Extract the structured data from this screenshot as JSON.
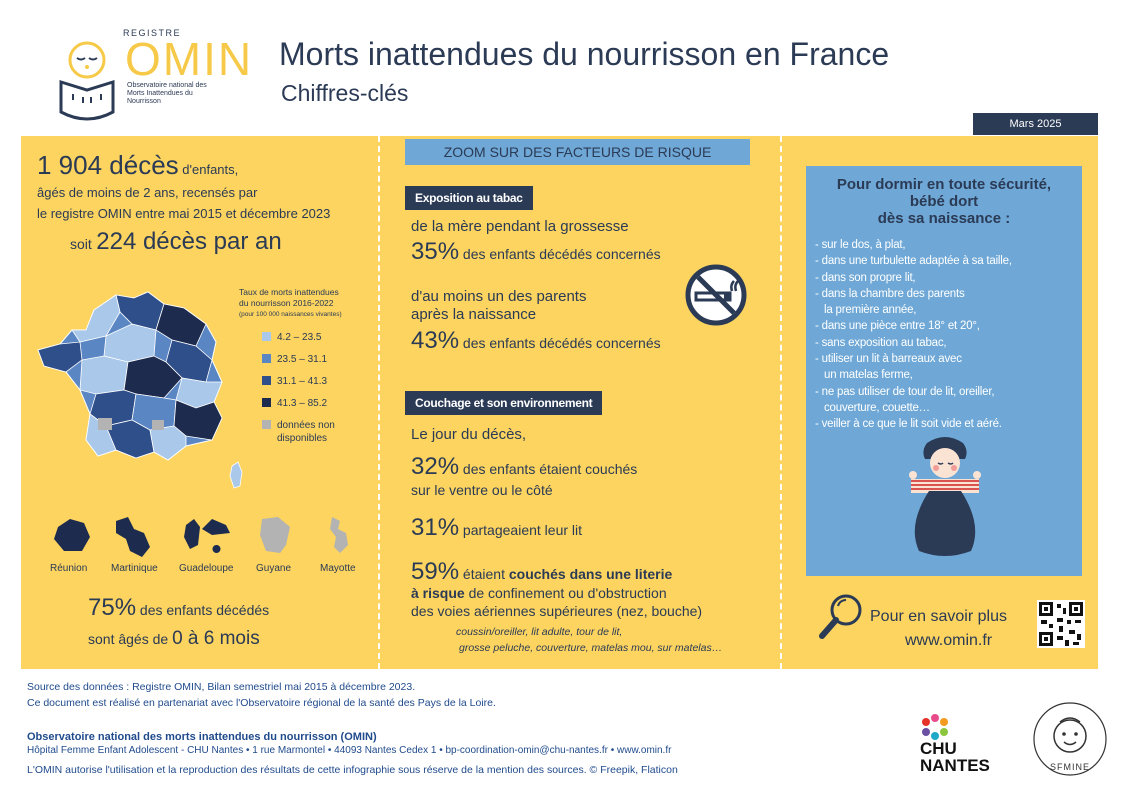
{
  "header": {
    "logo": {
      "registre": "REGISTRE",
      "omin": "OMIN",
      "subtitle": "Observatoire national des Morts Inattendues du Nourrisson"
    },
    "title": "Morts inattendues du nourrisson en France",
    "subtitle": "Chiffres-clés",
    "date": "Mars 2025"
  },
  "left": {
    "deaths_number": "1 904 décès",
    "deaths_suffix": " d'enfants,",
    "line2": "âgés de moins de 2 ans, recensés par",
    "line3": "le registre OMIN entre mai 2015 et décembre 2023",
    "soit": "soit",
    "per_year": "224 décès par an",
    "legend": {
      "title_line1": "Taux de morts inattendues",
      "title_line2": "du nourrisson 2016-2022",
      "title_line3": "(pour 100 000 naissances vivantes)",
      "items": [
        {
          "label": "4.2 – 23.5",
          "color": "#a9c8ea"
        },
        {
          "label": "23.5 – 31.1",
          "color": "#5b86c4"
        },
        {
          "label": "31.1 – 41.3",
          "color": "#2f4f8a"
        },
        {
          "label": "41.3 – 85.2",
          "color": "#1d2b4f"
        },
        {
          "label": "données non disponibles",
          "color": "#b3b3b3"
        }
      ]
    },
    "dom": [
      "Réunion",
      "Martinique",
      "Guadeloupe",
      "Guyane",
      "Mayotte"
    ],
    "pct75": "75%",
    "pct75_text": " des enfants décédés",
    "ages_prefix": "sont âgés de ",
    "ages_value": "0 à 6 mois"
  },
  "middle": {
    "zoom_title": "ZOOM SUR DES FACTEURS DE RISQUE",
    "tobacco_tag": "Exposition au tabac",
    "tob_line1": "de la mère pendant la grossesse",
    "tob_pct1": "35%",
    "tob_txt1": " des enfants décédés concernés",
    "tob_line2a": "d'au moins un des parents",
    "tob_line2b": "après la naissance",
    "tob_pct2": "43%",
    "tob_txt2": "  des enfants décédés concernés",
    "sleep_tag": "Couchage et son environnement",
    "day_text": "Le jour du décès,",
    "s_pct1": "32%",
    "s_txt1": " des enfants étaient couchés",
    "s_txt1b": "sur le ventre ou le côté",
    "s_pct2": "31%",
    "s_txt2": " partageaient leur lit",
    "s_pct3": "59%",
    "s_txt3a": " étaient ",
    "s_txt3b": "couchés dans une literie",
    "s_txt3c": "à risque",
    "s_txt3d": " de confinement ou d'obstruction",
    "s_txt3e": "des voies aériennes supérieures (nez, bouche)",
    "examples1": "coussin/oreiller, lit adulte, tour de lit,",
    "examples2": "grosse peluche, couverture, matelas mou, sur matelas…"
  },
  "right": {
    "title1": "Pour dormir en toute sécurité,",
    "title2": "bébé dort",
    "title3": "dès sa naissance :",
    "list": [
      "- sur le dos, à plat,",
      "- dans une turbulette adaptée à sa taille,",
      "- dans son propre lit,",
      "- dans la chambre des parents",
      "   la première année,",
      "- dans une pièce entre 18° et 20°,",
      "- sans exposition au tabac,",
      "- utiliser un lit à barreaux avec",
      "   un matelas ferme,",
      "- ne pas utiliser de tour de lit, oreiller,",
      "   couverture, couette…",
      "- veiller à ce que le lit soit vide et aéré."
    ],
    "more": "Pour en savoir plus",
    "url": "www.omin.fr"
  },
  "footer": {
    "source": "Source des données : Registre OMIN, Bilan semestriel mai 2015 à décembre 2023.",
    "partner": "Ce document est réalisé en partenariat avec l'Observatoire régional de la santé des Pays de la Loire.",
    "org": "Observatoire national des morts inattendues du nourrisson (OMIN)",
    "address": "Hôpital Femme Enfant Adolescent - CHU Nantes • 1 rue Marmontel • 44093 Nantes Cedex 1 • bp-coordination-omin@chu-nantes.fr • www.omin.fr",
    "authorization": "L'OMIN autorise l'utilisation et la reproduction des résultats de cette infographie sous réserve de la mention des sources. © Freepik, Flaticon",
    "chu1": "CHU",
    "chu2": "NANTES",
    "sfmine": "SFMINE"
  }
}
